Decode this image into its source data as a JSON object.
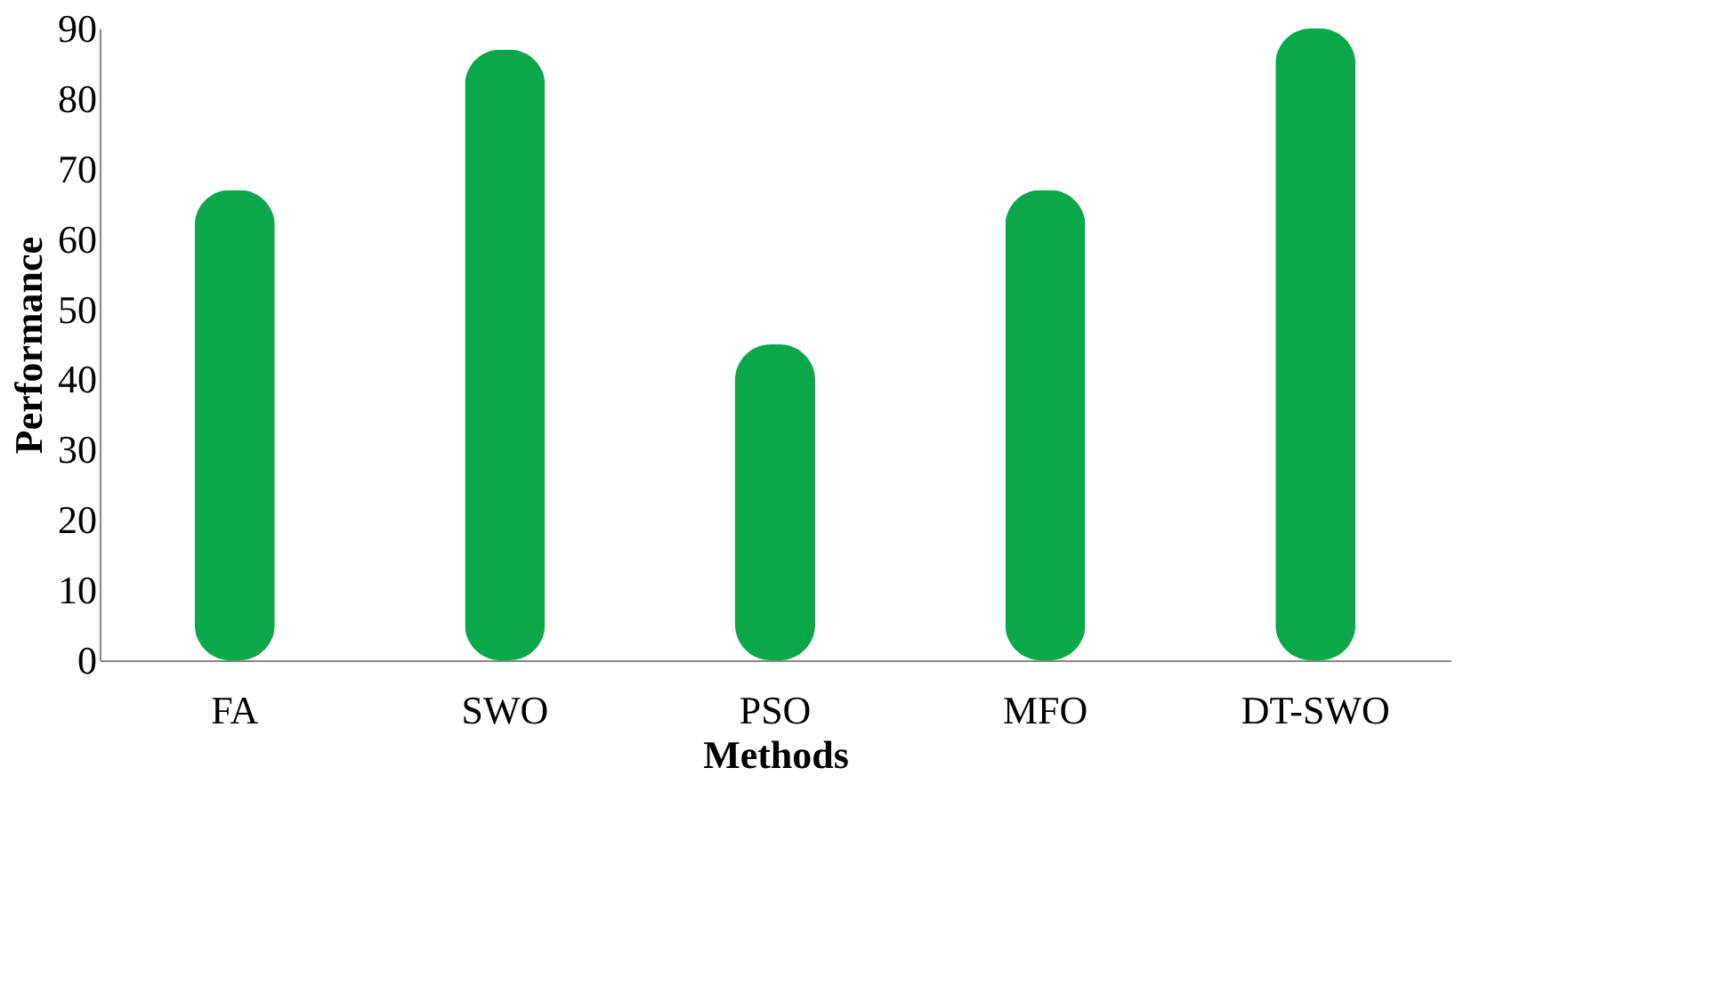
{
  "chart_data": {
    "type": "bar",
    "xlabel": "Methods",
    "ylabel": "Performance",
    "categories": [
      "FA",
      "SWO",
      "PSO",
      "MFO",
      "DT-SWO"
    ],
    "values": [
      67,
      87,
      45,
      67,
      90
    ],
    "color": "#0aa84a",
    "ylim": [
      0,
      90
    ],
    "yticks": [
      0,
      10,
      20,
      30,
      40,
      50,
      60,
      70,
      80,
      90
    ],
    "grid": false
  }
}
